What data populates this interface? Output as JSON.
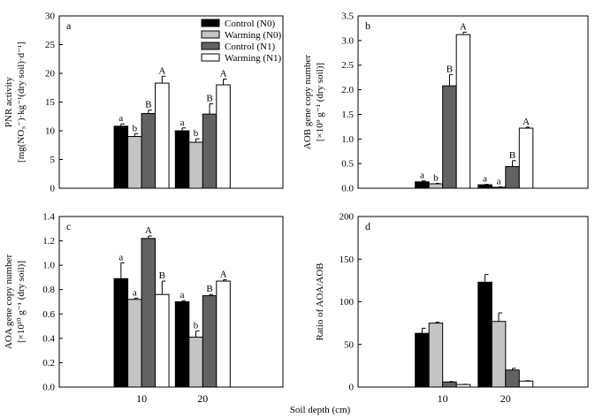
{
  "figure": {
    "xlabel": "Soil depth (cm)",
    "categories": [
      "10",
      "20"
    ],
    "legend": [
      "Control (N0)",
      "Warming (N0)",
      "Control (N1)",
      "Warming (N1)"
    ]
  },
  "colors": {
    "Control (N0)": "#000000",
    "Warming (N0)": "#c4c4c4",
    "Control (N1)": "#626262",
    "Warming (N1)": "#ffffff"
  },
  "chart_data": [
    {
      "panel": "a",
      "type": "bar",
      "ylabel_lines": [
        "PNR activity",
        "[mg(NO₃⁻)·kg⁻¹(dry soil)·d⁻¹]"
      ],
      "ylim": [
        0,
        30
      ],
      "yticks": [
        0,
        5,
        10,
        15,
        20,
        25,
        30
      ],
      "categories": [
        "10",
        "20"
      ],
      "series": [
        {
          "name": "Control (N0)",
          "values": [
            10.8,
            10.0
          ],
          "errors": [
            0.4,
            0.5
          ],
          "letters": [
            "a",
            "a"
          ]
        },
        {
          "name": "Warming (N0)",
          "values": [
            9.0,
            8.0
          ],
          "errors": [
            0.5,
            0.6
          ],
          "letters": [
            "b",
            "b"
          ]
        },
        {
          "name": "Control (N1)",
          "values": [
            13.0,
            12.9
          ],
          "errors": [
            0.6,
            1.8
          ],
          "letters": [
            "B",
            "B"
          ]
        },
        {
          "name": "Warming (N1)",
          "values": [
            18.3,
            18.0
          ],
          "errors": [
            1.2,
            1.0
          ],
          "letters": [
            "A",
            "A"
          ]
        }
      ],
      "legend": "top-right"
    },
    {
      "panel": "b",
      "type": "bar",
      "ylabel_lines": [
        "AOB gene copy number",
        "[×10⁹ g⁻¹ (dry soil)]"
      ],
      "ylim": [
        0,
        3.5
      ],
      "yticks": [
        0,
        0.5,
        1.0,
        1.5,
        2.0,
        2.5,
        3.0,
        3.5
      ],
      "categories": [
        "10",
        "20"
      ],
      "series": [
        {
          "name": "Control (N0)",
          "values": [
            0.13,
            0.07
          ],
          "errors": [
            0.02,
            0.01
          ],
          "letters": [
            "a",
            "a"
          ]
        },
        {
          "name": "Warming (N0)",
          "values": [
            0.09,
            0.02
          ],
          "errors": [
            0.01,
            0.01
          ],
          "letters": [
            "b",
            "a"
          ]
        },
        {
          "name": "Control (N1)",
          "values": [
            2.08,
            0.44
          ],
          "errors": [
            0.23,
            0.12
          ],
          "letters": [
            "B",
            "B"
          ]
        },
        {
          "name": "Warming (N1)",
          "values": [
            3.12,
            1.22
          ],
          "errors": [
            0.05,
            0.02
          ],
          "letters": [
            "A",
            "A"
          ]
        }
      ]
    },
    {
      "panel": "c",
      "type": "bar",
      "ylabel_lines": [
        "AOA gene copy number",
        "[×10¹⁰ g⁻¹ (dry soil)]"
      ],
      "ylim": [
        0,
        1.4
      ],
      "yticks": [
        0,
        0.2,
        0.4,
        0.6,
        0.8,
        1.0,
        1.2,
        1.4
      ],
      "categories": [
        "10",
        "20"
      ],
      "series": [
        {
          "name": "Control (N0)",
          "values": [
            0.89,
            0.7
          ],
          "errors": [
            0.13,
            0.01
          ],
          "letters": [
            "a",
            "a"
          ]
        },
        {
          "name": "Warming (N0)",
          "values": [
            0.72,
            0.41
          ],
          "errors": [
            0.01,
            0.05
          ],
          "letters": [
            "a",
            "b"
          ]
        },
        {
          "name": "Control (N1)",
          "values": [
            1.22,
            0.75
          ],
          "errors": [
            0.02,
            0.01
          ],
          "letters": [
            "A",
            "B"
          ]
        },
        {
          "name": "Warming (N1)",
          "values": [
            0.76,
            0.87
          ],
          "errors": [
            0.11,
            0.01
          ],
          "letters": [
            "B",
            "A"
          ]
        }
      ]
    },
    {
      "panel": "d",
      "type": "bar",
      "ylabel_lines": [
        "Ratio of AOA/AOB"
      ],
      "ylim": [
        0,
        200
      ],
      "yticks": [
        0,
        50,
        100,
        150,
        200
      ],
      "categories": [
        "10",
        "20"
      ],
      "series": [
        {
          "name": "Control (N0)",
          "values": [
            63,
            123
          ],
          "errors": [
            6,
            9
          ]
        },
        {
          "name": "Warming (N0)",
          "values": [
            75,
            77
          ],
          "errors": [
            1,
            10
          ]
        },
        {
          "name": "Control (N1)",
          "values": [
            6,
            20
          ],
          "errors": [
            0.5,
            2
          ]
        },
        {
          "name": "Warming (N1)",
          "values": [
            3,
            7
          ],
          "errors": [
            0.3,
            0.5
          ]
        }
      ]
    }
  ]
}
